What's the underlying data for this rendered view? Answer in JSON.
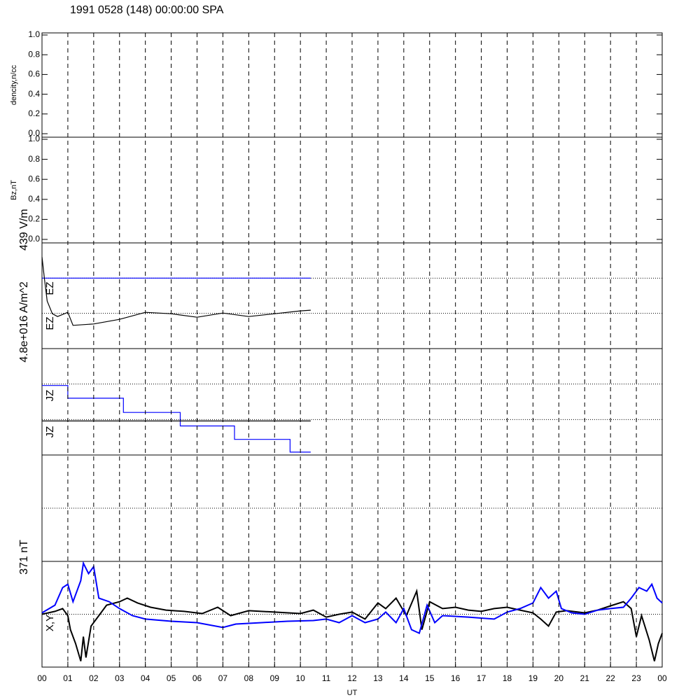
{
  "title": "1991 0528 (148) 00:00:00 SPA",
  "x_axis": {
    "label": "UT",
    "xlim": [
      0,
      24
    ],
    "grid": true,
    "xticks": [
      {
        "value": 0,
        "label": "00"
      },
      {
        "value": 1,
        "label": "01"
      },
      {
        "value": 2,
        "label": "02"
      },
      {
        "value": 3,
        "label": "03"
      },
      {
        "value": 4,
        "label": "04"
      },
      {
        "value": 5,
        "label": "05"
      },
      {
        "value": 6,
        "label": "06"
      },
      {
        "value": 7,
        "label": "07"
      },
      {
        "value": 8,
        "label": "08"
      },
      {
        "value": 9,
        "label": "09"
      },
      10,
      11,
      12,
      13,
      14,
      15,
      16,
      17,
      18,
      19,
      20,
      21,
      22,
      23,
      {
        "value": 24,
        "label": "00"
      }
    ]
  },
  "chart_data": [
    {
      "type": "line",
      "ylabel": "dencity,n/cc",
      "ylim": [
        0,
        1
      ],
      "yticks": [
        {
          "value": 0,
          "label": "0.0"
        },
        0.2,
        0.4,
        0.6,
        0.8,
        {
          "value": 1,
          "label": "1.0"
        }
      ],
      "series": []
    },
    {
      "type": "line",
      "ylabel": "Bz,nT",
      "ylim": [
        0,
        1
      ],
      "yticks": [
        {
          "value": 0,
          "label": "0.0"
        },
        0.2,
        0.4,
        0.6,
        0.8,
        {
          "value": 1,
          "label": "1.0"
        }
      ],
      "series": []
    },
    {
      "type": "line",
      "scale_label": "439 V/m",
      "ylim": [
        0,
        3
      ],
      "hlines": [
        1,
        2
      ],
      "series": [
        {
          "name": "EZ",
          "color": "#0000ff",
          "x": [
            0,
            10.4
          ],
          "values": [
            2,
            2
          ]
        },
        {
          "name": "EZ",
          "color": "#000000",
          "x": [
            0,
            0.1,
            0.2,
            0.4,
            0.6,
            1.0,
            1.2,
            2.0,
            3.0,
            4.0,
            5.0,
            6.0,
            7.0,
            8.0,
            9.0,
            10.0,
            10.4
          ],
          "values": [
            2.6,
            1.95,
            1.35,
            0.99,
            0.91,
            1.03,
            0.66,
            0.7,
            0.83,
            1.03,
            0.99,
            0.89,
            1.01,
            0.91,
            0.99,
            1.07,
            1.09
          ]
        }
      ]
    },
    {
      "type": "line",
      "scale_label": "4.8e+016 A/m^2",
      "ylim": [
        0,
        3
      ],
      "hlines": [
        1,
        2
      ],
      "series": [
        {
          "name": "JZ",
          "color": "#0000ff",
          "x": [
            0,
            1.0,
            1.0,
            3.15,
            3.15,
            5.35,
            5.35,
            7.45,
            7.45,
            9.6,
            9.6,
            10.4
          ],
          "values": [
            1.96,
            1.96,
            1.6,
            1.6,
            1.2,
            1.2,
            0.82,
            0.82,
            0.44,
            0.44,
            0.08,
            0.08
          ]
        },
        {
          "name": "JZ",
          "color": "#000000",
          "x": [
            0,
            10.4
          ],
          "values": [
            0.96,
            0.96
          ]
        }
      ]
    },
    {
      "type": "line",
      "ylim": [
        0,
        3
      ],
      "hlines": [
        1.5
      ],
      "series": []
    },
    {
      "type": "line",
      "scale_label": "371 nT",
      "label": "X,Y",
      "ylim": [
        -371,
        371
      ],
      "hlines": [
        0
      ],
      "series": [
        {
          "color": "#000000",
          "x": [
            0,
            0.5,
            0.8,
            1.0,
            1.1,
            1.3,
            1.5,
            1.6,
            1.7,
            1.9,
            2.2,
            2.5,
            3.0,
            3.3,
            3.7,
            4.2,
            4.8,
            5.5,
            6.2,
            6.8,
            7.3,
            8.0,
            9.0,
            10.0,
            10.5,
            11.0,
            11.5,
            12.0,
            12.5,
            13.0,
            13.3,
            13.7,
            14.1,
            14.5,
            14.7,
            15.0,
            15.5,
            16.0,
            16.5,
            17.0,
            17.5,
            18.0,
            18.5,
            19.0,
            19.3,
            19.6,
            19.9,
            20.3,
            21.0,
            21.5,
            22.0,
            22.5,
            22.8,
            23.0,
            23.2,
            23.5,
            23.7,
            23.85,
            24.0
          ],
          "values": [
            0,
            20,
            40,
            -10,
            -108,
            -206,
            -329,
            -157,
            -304,
            -83,
            -10,
            64,
            88,
            113,
            79,
            49,
            29,
            20,
            5,
            49,
            -10,
            25,
            15,
            5,
            29,
            -20,
            0,
            15,
            -34,
            79,
            40,
            113,
            -10,
            162,
            -108,
            88,
            40,
            49,
            29,
            20,
            40,
            49,
            29,
            10,
            -34,
            -83,
            15,
            25,
            10,
            29,
            59,
            88,
            40,
            -157,
            -10,
            -182,
            -329,
            -206,
            -133
          ]
        },
        {
          "color": "#0000ff",
          "x": [
            0,
            0.5,
            0.8,
            1.0,
            1.2,
            1.5,
            1.6,
            1.8,
            2.0,
            2.2,
            2.6,
            3.0,
            3.5,
            4.0,
            5.0,
            6.0,
            7.0,
            7.5,
            8.5,
            9.5,
            10.5,
            11.0,
            11.5,
            12.0,
            12.5,
            13.0,
            13.3,
            13.7,
            14.0,
            14.3,
            14.6,
            14.9,
            15.2,
            15.5,
            16.5,
            17.5,
            18.0,
            18.5,
            19.0,
            19.3,
            19.6,
            19.9,
            20.1,
            20.5,
            21.0,
            21.5,
            22.0,
            22.5,
            22.8,
            23.1,
            23.4,
            23.6,
            23.8,
            24.0
          ],
          "values": [
            10,
            64,
            187,
            211,
            88,
            236,
            358,
            285,
            334,
            113,
            88,
            40,
            -10,
            -34,
            -49,
            -59,
            -93,
            -69,
            -59,
            -49,
            -44,
            -34,
            -59,
            -10,
            -59,
            -34,
            15,
            -59,
            40,
            -108,
            -133,
            64,
            -59,
            -10,
            -20,
            -34,
            15,
            40,
            79,
            187,
            113,
            162,
            40,
            10,
            0,
            29,
            40,
            49,
            113,
            187,
            162,
            211,
            113,
            79
          ]
        }
      ]
    }
  ]
}
